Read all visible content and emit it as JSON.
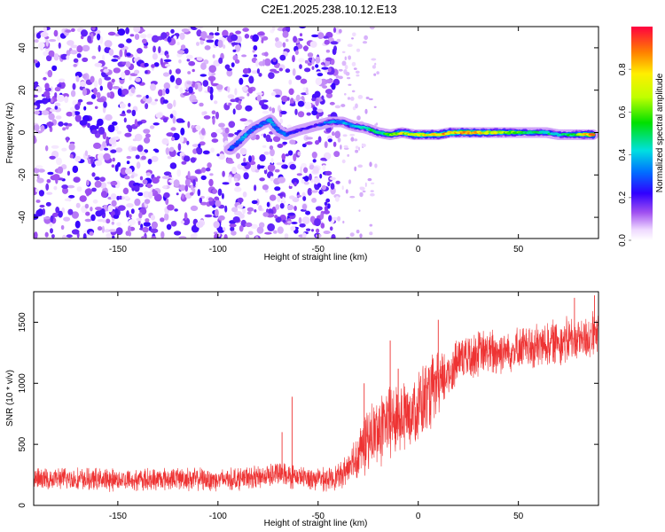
{
  "title": "C2E1.2025.238.10.12.E13",
  "chart_data": [
    {
      "type": "heatmap",
      "name": "spectrogram",
      "xlabel": "Height of straight line (km)",
      "ylabel": "Frequency (Hz)",
      "xlim": [
        -192,
        90
      ],
      "ylim": [
        -50,
        50
      ],
      "xticks": [
        -150,
        -100,
        -50,
        0,
        50
      ],
      "yticks": [
        -40,
        -20,
        0,
        20,
        40
      ],
      "colorbar": {
        "label": "Normalized spectral amplitude",
        "range": [
          0,
          1
        ],
        "ticks": [
          "0.0",
          "0.2",
          "0.4",
          "0.6",
          "0.8"
        ],
        "tick_values": [
          0.0,
          0.2,
          0.4,
          0.6,
          0.8
        ]
      },
      "ridge": [
        {
          "x": -94,
          "y": -8,
          "amp": 0.25
        },
        {
          "x": -90,
          "y": -5,
          "amp": 0.3
        },
        {
          "x": -86,
          "y": -1,
          "amp": 0.35
        },
        {
          "x": -82,
          "y": 2,
          "amp": 0.3
        },
        {
          "x": -78,
          "y": 4,
          "amp": 0.3
        },
        {
          "x": -74,
          "y": 6,
          "amp": 0.35
        },
        {
          "x": -70,
          "y": 1,
          "amp": 0.3
        },
        {
          "x": -66,
          "y": -1,
          "amp": 0.3
        },
        {
          "x": -60,
          "y": 1,
          "amp": 0.2
        },
        {
          "x": -52,
          "y": 3,
          "amp": 0.2
        },
        {
          "x": -44,
          "y": 5,
          "amp": 0.35
        },
        {
          "x": -38,
          "y": 5,
          "amp": 0.35
        },
        {
          "x": -32,
          "y": 3,
          "amp": 0.4
        },
        {
          "x": -26,
          "y": 2,
          "amp": 0.45
        },
        {
          "x": -20,
          "y": 0,
          "amp": 0.5
        },
        {
          "x": -14,
          "y": -1,
          "amp": 0.55
        },
        {
          "x": -8,
          "y": 0,
          "amp": 0.7
        },
        {
          "x": -2,
          "y": -1,
          "amp": 0.7
        },
        {
          "x": 4,
          "y": -1,
          "amp": 0.75
        },
        {
          "x": 10,
          "y": -1,
          "amp": 0.8
        },
        {
          "x": 16,
          "y": 0,
          "amp": 0.8
        },
        {
          "x": 22,
          "y": 0,
          "amp": 0.85
        },
        {
          "x": 28,
          "y": 0,
          "amp": 0.8
        },
        {
          "x": 34,
          "y": 0,
          "amp": 0.75
        },
        {
          "x": 40,
          "y": 0,
          "amp": 0.7
        },
        {
          "x": 46,
          "y": 0,
          "amp": 0.65
        },
        {
          "x": 52,
          "y": 0,
          "amp": 0.55
        },
        {
          "x": 58,
          "y": 0,
          "amp": 0.5
        },
        {
          "x": 64,
          "y": 0,
          "amp": 0.45
        },
        {
          "x": 70,
          "y": -1,
          "amp": 0.45
        },
        {
          "x": 76,
          "y": -1,
          "amp": 0.5
        },
        {
          "x": 82,
          "y": -1,
          "amp": 0.7
        },
        {
          "x": 88,
          "y": -1,
          "amp": 0.95
        }
      ],
      "noise_extent_x": [
        -192,
        -40
      ],
      "noise_amp_range": [
        0.02,
        0.22
      ]
    },
    {
      "type": "line",
      "name": "snr",
      "xlabel": "Height of straight line (km)",
      "ylabel": "SNR (10 * v/v)",
      "xlim": [
        -192,
        90
      ],
      "ylim": [
        0,
        1750
      ],
      "xticks": [
        -150,
        -100,
        -50,
        0,
        50
      ],
      "yticks": [
        0,
        500,
        1000,
        1500
      ],
      "color": "#ee3333",
      "series": [
        {
          "name": "SNR",
          "x": [
            -192,
            -180,
            -160,
            -140,
            -120,
            -100,
            -80,
            -70,
            -60,
            -45,
            -38,
            -32,
            -25,
            -18,
            -10,
            -5,
            0,
            5,
            10,
            15,
            20,
            30,
            40,
            50,
            60,
            70,
            80,
            90
          ],
          "y": [
            210,
            220,
            210,
            210,
            220,
            210,
            230,
            260,
            230,
            210,
            250,
            380,
            530,
            640,
            720,
            760,
            820,
            900,
            970,
            1080,
            1200,
            1250,
            1260,
            1280,
            1300,
            1350,
            1360,
            1400
          ],
          "spread": [
            150,
            150,
            150,
            150,
            150,
            150,
            150,
            170,
            150,
            150,
            180,
            280,
            420,
            480,
            480,
            500,
            500,
            480,
            460,
            360,
            300,
            300,
            300,
            300,
            300,
            300,
            300,
            300
          ]
        }
      ],
      "spikes": [
        {
          "x": -63,
          "y": 890
        },
        {
          "x": -68,
          "y": 600
        },
        {
          "x": -27,
          "y": 1000
        },
        {
          "x": -14,
          "y": 1350
        },
        {
          "x": 10,
          "y": 1520
        },
        {
          "x": -10,
          "y": 1120
        },
        {
          "x": 22,
          "y": 1350
        },
        {
          "x": 78,
          "y": 1700
        },
        {
          "x": 88,
          "y": 1720
        }
      ]
    }
  ]
}
